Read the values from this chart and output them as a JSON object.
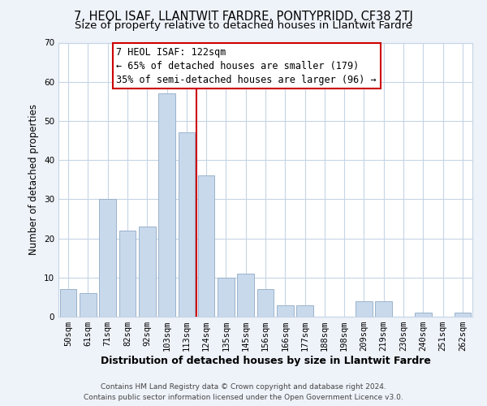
{
  "title": "7, HEOL ISAF, LLANTWIT FARDRE, PONTYPRIDD, CF38 2TJ",
  "subtitle": "Size of property relative to detached houses in Llantwit Fardre",
  "xlabel": "Distribution of detached houses by size in Llantwit Fardre",
  "ylabel": "Number of detached properties",
  "bar_labels": [
    "50sqm",
    "61sqm",
    "71sqm",
    "82sqm",
    "92sqm",
    "103sqm",
    "113sqm",
    "124sqm",
    "135sqm",
    "145sqm",
    "156sqm",
    "166sqm",
    "177sqm",
    "188sqm",
    "198sqm",
    "209sqm",
    "219sqm",
    "230sqm",
    "240sqm",
    "251sqm",
    "262sqm"
  ],
  "bar_values": [
    7,
    6,
    30,
    22,
    23,
    57,
    47,
    36,
    10,
    11,
    7,
    3,
    3,
    0,
    0,
    4,
    4,
    0,
    1,
    0,
    1
  ],
  "bar_color": "#c8d9ec",
  "bar_edge_color": "#9ab3cb",
  "vline_x": 6.5,
  "vline_color": "#cc0000",
  "ylim": [
    0,
    70
  ],
  "yticks": [
    0,
    10,
    20,
    30,
    40,
    50,
    60,
    70
  ],
  "annotation_title": "7 HEOL ISAF: 122sqm",
  "annotation_line1": "← 65% of detached houses are smaller (179)",
  "annotation_line2": "35% of semi-detached houses are larger (96) →",
  "annotation_box_color": "#cc0000",
  "footer_line1": "Contains HM Land Registry data © Crown copyright and database right 2024.",
  "footer_line2": "Contains public sector information licensed under the Open Government Licence v3.0.",
  "bg_color": "#eef2f9",
  "plot_bg_color": "#ffffff",
  "grid_color": "#c5d5e5",
  "title_fontsize": 10.5,
  "subtitle_fontsize": 9.5,
  "xlabel_fontsize": 9,
  "ylabel_fontsize": 8.5,
  "tick_fontsize": 7.5,
  "annotation_fontsize": 8.5,
  "footer_fontsize": 6.5
}
